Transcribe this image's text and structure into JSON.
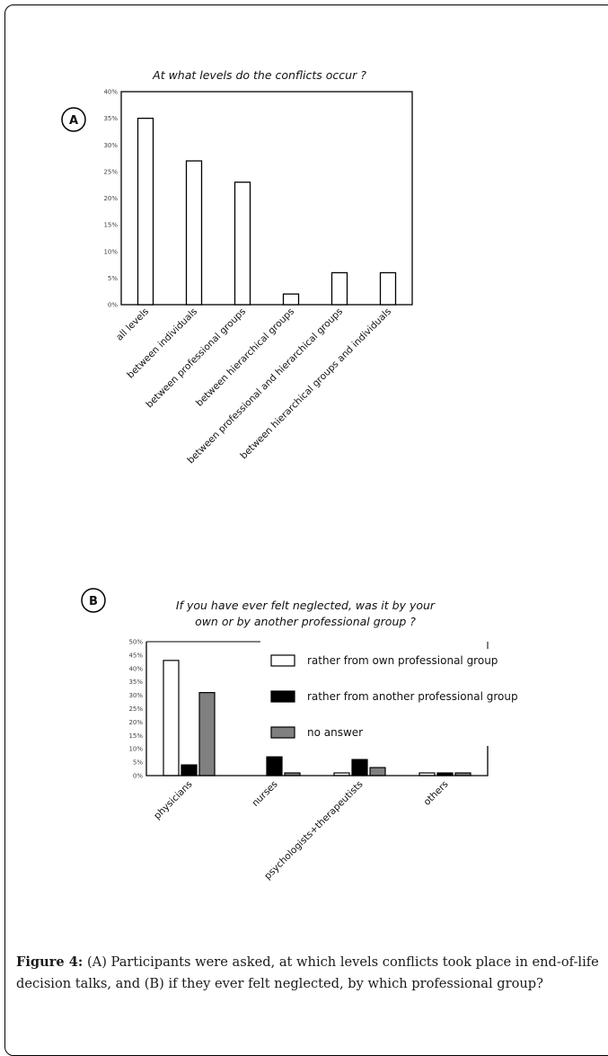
{
  "chart_data": [
    {
      "type": "bar",
      "panel": "A",
      "title": "At what levels do the conflicts occur ?",
      "categories": [
        "all levels",
        "between individuals",
        "between professional groups",
        "between hierarchical groups",
        "between professional and hierarchical groups",
        "between hierarchical groups and individuals"
      ],
      "values": [
        35,
        27,
        23,
        2,
        6,
        6
      ],
      "unit": "%",
      "ylim": [
        0,
        40
      ],
      "yticks": [
        "0%",
        "5%",
        "10%",
        "15%",
        "20%",
        "25%",
        "30%",
        "35%",
        "40%"
      ],
      "bar_fill": "#ffffff",
      "grid": false,
      "legend": "none"
    },
    {
      "type": "bar",
      "panel": "B",
      "title": "If you have ever felt neglected, was it by your own or by another professional group ?",
      "title_lines": [
        "If you have ever felt neglected, was it by your",
        "own or by another professional group ?"
      ],
      "categories": [
        "physicians",
        "nurses",
        "psychologists+therapeutists",
        "others"
      ],
      "series": [
        {
          "name": "rather from own professional group",
          "values": [
            43,
            0,
            1,
            1
          ],
          "color": "#ffffff"
        },
        {
          "name": "rather from another professional group",
          "values": [
            4,
            7,
            6,
            1
          ],
          "color": "#000000"
        },
        {
          "name": "no answer",
          "values": [
            31,
            1,
            3,
            1
          ],
          "color": "#808080"
        }
      ],
      "unit": "%",
      "ylim": [
        0,
        50
      ],
      "yticks": [
        "0%",
        "5%",
        "10%",
        "15%",
        "20%",
        "25%",
        "30%",
        "35%",
        "40%",
        "45%",
        "50%"
      ],
      "grid": false,
      "legend": "top-right"
    }
  ],
  "caption": {
    "label": "Figure 4:",
    "text": " (A) Participants were asked, at which levels conflicts took place in end-of-life decision talks, and (B) if they ever felt neglected, by which professional group?"
  }
}
